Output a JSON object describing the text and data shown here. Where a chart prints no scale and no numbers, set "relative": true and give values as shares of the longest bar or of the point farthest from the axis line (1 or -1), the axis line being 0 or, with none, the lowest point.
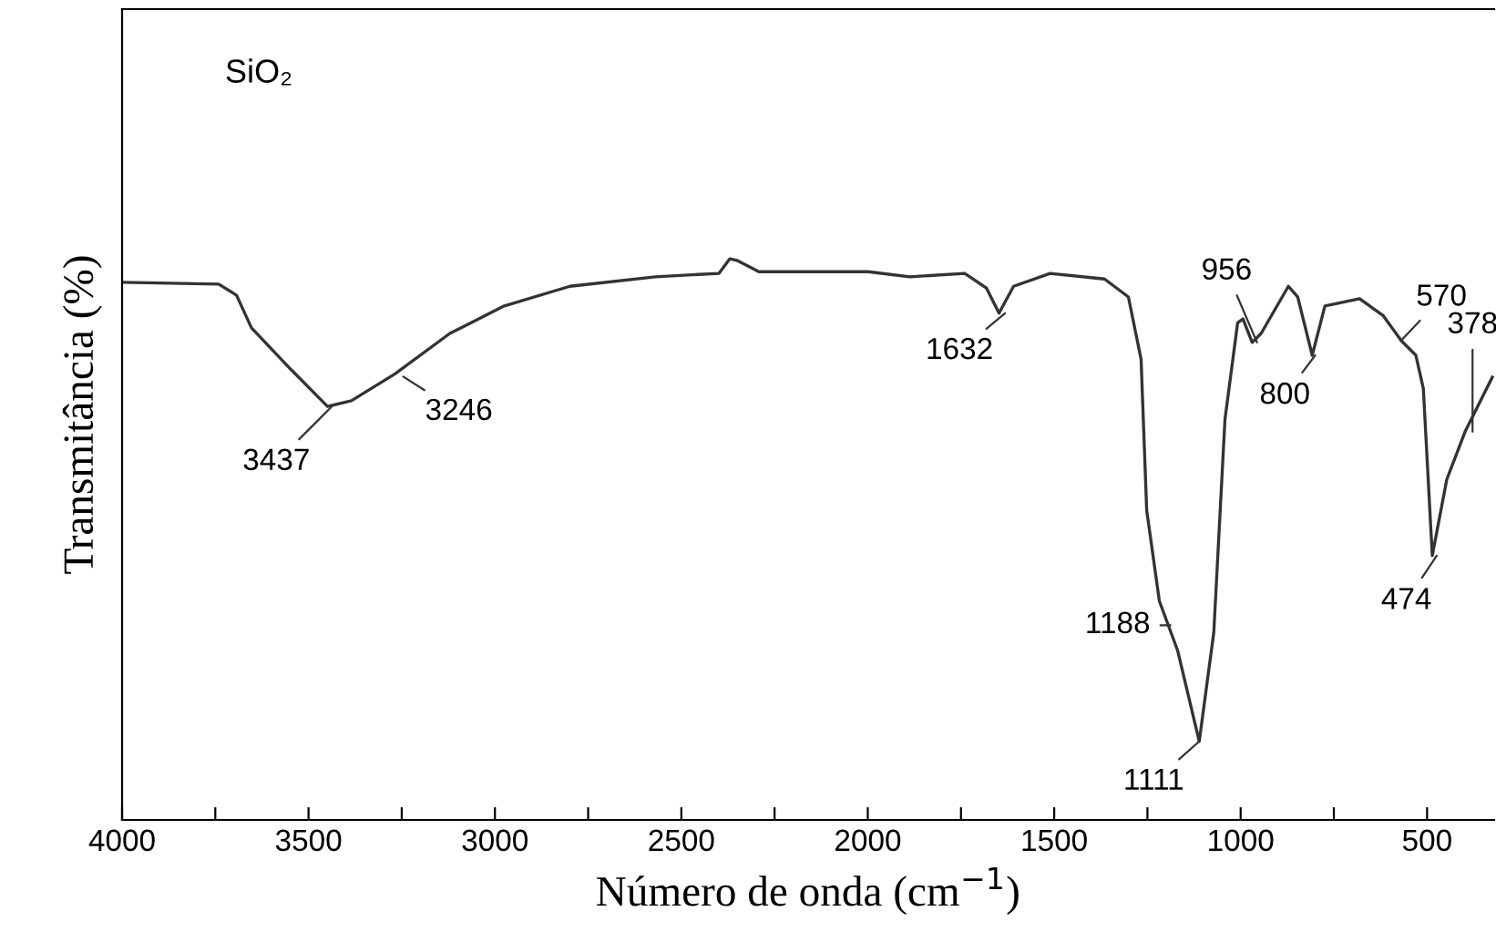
{
  "chart_data": {
    "type": "line",
    "relative": true,
    "xlabel": "Número de onda (cm$^{−1}$)",
    "ylabel": "Transmitância (%)",
    "xlim": [
      4000,
      320
    ],
    "xticks": [
      4000,
      {
        "value": 3750,
        "label": null
      },
      3500,
      {
        "value": 3250,
        "label": null
      },
      3000,
      {
        "value": 2750,
        "label": null
      },
      2500,
      {
        "value": 2250,
        "label": null
      },
      2000,
      {
        "value": 1750,
        "label": null
      },
      1500,
      {
        "value": 1250,
        "label": null
      },
      1000,
      {
        "value": 750,
        "label": null
      },
      500
    ],
    "grid": false,
    "legend": false,
    "marker": "none",
    "line_style": "solid",
    "series": [
      {
        "color": "#333333",
        "x": [
          4000,
          3741,
          3693,
          3653,
          3546,
          3449,
          3385,
          3268,
          3121,
          2975,
          2799,
          2570,
          2399,
          2370,
          2350,
          2292,
          1999,
          1887,
          1740,
          1682,
          1648,
          1609,
          1511,
          1365,
          1301,
          1267,
          1252,
          1218,
          1169,
          1111,
          1072,
          1042,
          1008,
          994,
          969,
          945,
          872,
          847,
          808,
          774,
          681,
          618,
          569,
          530,
          510,
          486,
          447,
          398,
          325
        ],
        "values": [
          0.958,
          0.955,
          0.935,
          0.877,
          0.802,
          0.737,
          0.747,
          0.795,
          0.867,
          0.916,
          0.951,
          0.968,
          0.974,
          1.0,
          0.997,
          0.977,
          0.977,
          0.968,
          0.974,
          0.948,
          0.903,
          0.951,
          0.974,
          0.964,
          0.932,
          0.821,
          0.552,
          0.39,
          0.302,
          0.14,
          0.334,
          0.714,
          0.886,
          0.893,
          0.851,
          0.867,
          0.951,
          0.932,
          0.828,
          0.916,
          0.929,
          0.899,
          0.854,
          0.828,
          0.769,
          0.471,
          0.607,
          0.692,
          0.789
        ]
      }
    ],
    "annotations": [
      "SiO₂",
      {
        "text": "3437",
        "x": 3437,
        "y": 0.737
      },
      {
        "text": "3246",
        "x": 3246,
        "y": 0.79
      },
      {
        "text": "1632",
        "x": 1632,
        "y": 0.903
      },
      {
        "text": "1188",
        "x": 1188,
        "y": 0.347
      },
      {
        "text": "1111",
        "x": 1111,
        "y": 0.14
      },
      {
        "text": "956",
        "x": 956,
        "y": 0.851
      },
      {
        "text": "800",
        "x": 800,
        "y": 0.828
      },
      {
        "text": "570",
        "x": 570,
        "y": 0.854
      },
      {
        "text": "378",
        "x": 378,
        "y": 0.692
      },
      {
        "text": "474",
        "x": 474,
        "y": 0.471
      }
    ]
  }
}
